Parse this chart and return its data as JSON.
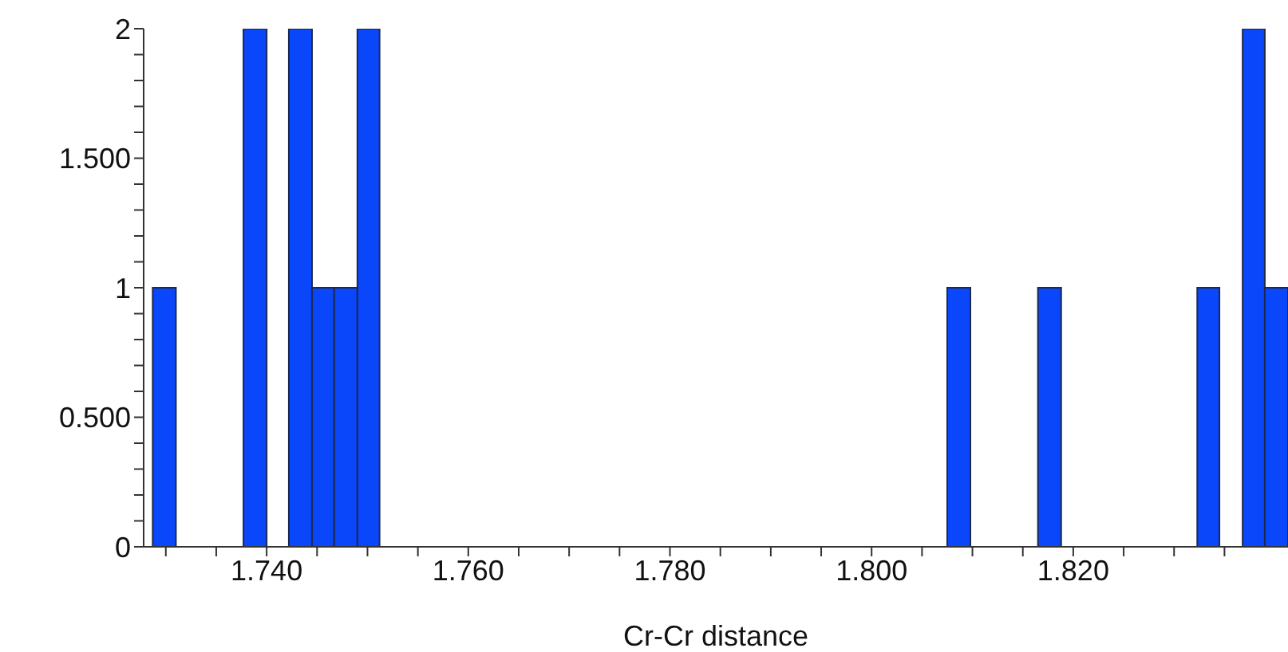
{
  "chart_data": {
    "type": "histogram",
    "xlabel": "Cr-Cr distance",
    "color": "#0a46fa",
    "bins": [
      1.7287,
      1.731,
      1.7377,
      1.74,
      1.7422,
      1.7445,
      1.7467,
      1.749,
      1.7512,
      1.8075,
      1.8098,
      1.8165,
      1.8188,
      1.8323,
      1.8345,
      1.8368,
      1.839,
      1.8413
    ],
    "values": [
      1,
      0,
      2,
      0,
      2,
      1,
      1,
      2,
      0,
      1,
      0,
      1,
      0,
      1,
      0,
      2,
      1
    ],
    "xlim": [
      1.7278,
      1.8413
    ],
    "xticks": [
      {
        "value": 1.73,
        "label": null
      },
      {
        "value": 1.735,
        "label": null
      },
      {
        "value": 1.74,
        "label": "1.740"
      },
      {
        "value": 1.745,
        "label": null
      },
      {
        "value": 1.75,
        "label": null
      },
      {
        "value": 1.755,
        "label": null
      },
      {
        "value": 1.76,
        "label": "1.760"
      },
      {
        "value": 1.765,
        "label": null
      },
      {
        "value": 1.77,
        "label": null
      },
      {
        "value": 1.775,
        "label": null
      },
      {
        "value": 1.78,
        "label": "1.780"
      },
      {
        "value": 1.785,
        "label": null
      },
      {
        "value": 1.79,
        "label": null
      },
      {
        "value": 1.795,
        "label": null
      },
      {
        "value": 1.8,
        "label": "1.800"
      },
      {
        "value": 1.805,
        "label": null
      },
      {
        "value": 1.81,
        "label": null
      },
      {
        "value": 1.815,
        "label": null
      },
      {
        "value": 1.82,
        "label": "1.820"
      },
      {
        "value": 1.825,
        "label": null
      },
      {
        "value": 1.83,
        "label": null
      },
      {
        "value": 1.835,
        "label": null
      }
    ],
    "ylim": [
      0,
      2
    ],
    "yticks": [
      0,
      {
        "value": 0.1,
        "label": null
      },
      {
        "value": 0.2,
        "label": null
      },
      {
        "value": 0.3,
        "label": null
      },
      {
        "value": 0.4,
        "label": null
      },
      {
        "value": 0.5,
        "label": "0.500"
      },
      {
        "value": 0.6,
        "label": null
      },
      {
        "value": 0.7,
        "label": null
      },
      {
        "value": 0.8,
        "label": null
      },
      {
        "value": 0.9,
        "label": null
      },
      1,
      {
        "value": 1.1,
        "label": null
      },
      {
        "value": 1.2,
        "label": null
      },
      {
        "value": 1.3,
        "label": null
      },
      {
        "value": 1.4,
        "label": null
      },
      {
        "value": 1.5,
        "label": "1.500"
      },
      {
        "value": 1.6,
        "label": null
      },
      {
        "value": 1.7,
        "label": null
      },
      {
        "value": 1.8,
        "label": null
      },
      {
        "value": 1.9,
        "label": null
      },
      2
    ],
    "grid": false
  }
}
